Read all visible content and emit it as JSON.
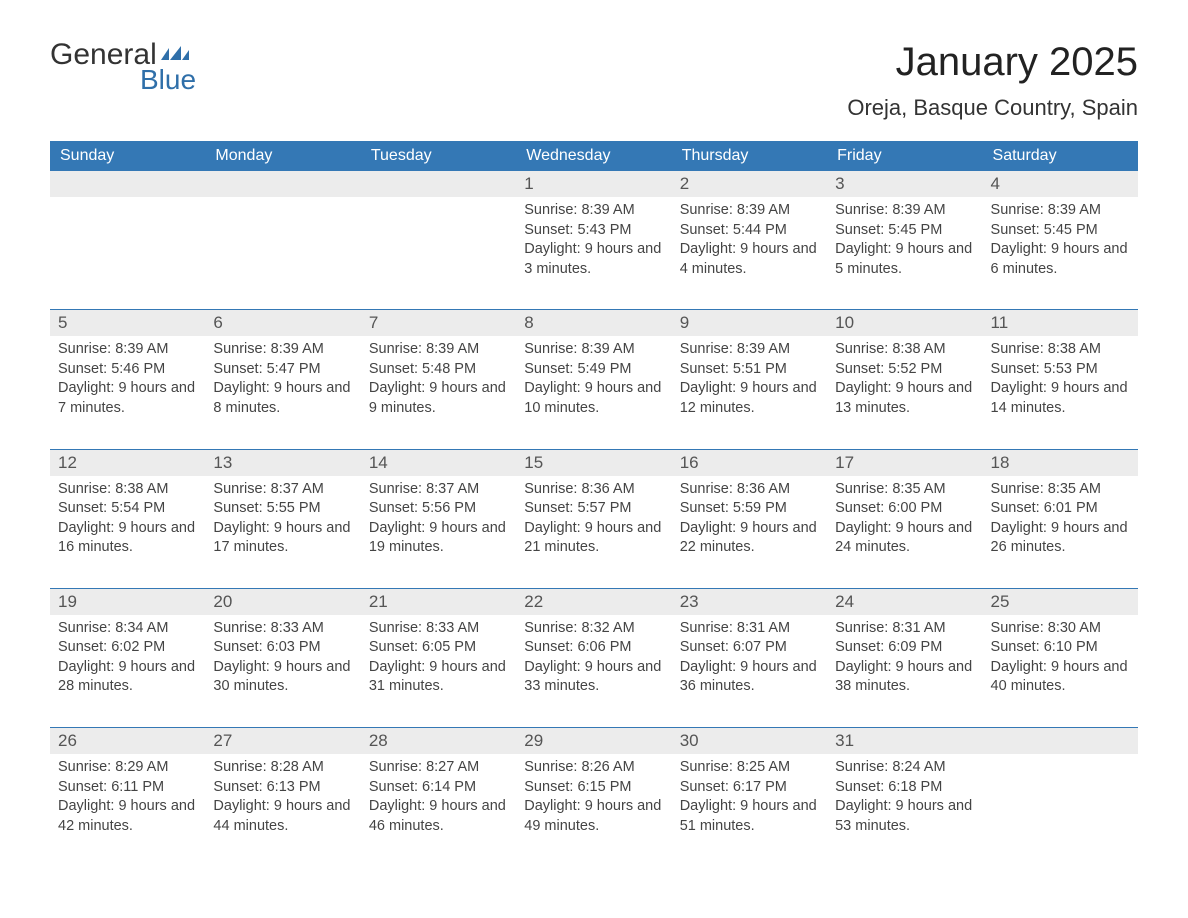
{
  "logo": {
    "word1": "General",
    "word2": "Blue",
    "flag_color": "#2f6fa9"
  },
  "title": "January 2025",
  "location": "Oreja, Basque Country, Spain",
  "colors": {
    "header_bg": "#3478b5",
    "header_text": "#ffffff",
    "daynum_bg": "#ececec",
    "accent": "#3478b5",
    "text": "#444444"
  },
  "day_headers": [
    "Sunday",
    "Monday",
    "Tuesday",
    "Wednesday",
    "Thursday",
    "Friday",
    "Saturday"
  ],
  "weeks": [
    {
      "days": [
        {
          "n": "",
          "sunrise": "",
          "sunset": "",
          "daylight": ""
        },
        {
          "n": "",
          "sunrise": "",
          "sunset": "",
          "daylight": ""
        },
        {
          "n": "",
          "sunrise": "",
          "sunset": "",
          "daylight": ""
        },
        {
          "n": "1",
          "sunrise": "Sunrise: 8:39 AM",
          "sunset": "Sunset: 5:43 PM",
          "daylight": "Daylight: 9 hours and 3 minutes."
        },
        {
          "n": "2",
          "sunrise": "Sunrise: 8:39 AM",
          "sunset": "Sunset: 5:44 PM",
          "daylight": "Daylight: 9 hours and 4 minutes."
        },
        {
          "n": "3",
          "sunrise": "Sunrise: 8:39 AM",
          "sunset": "Sunset: 5:45 PM",
          "daylight": "Daylight: 9 hours and 5 minutes."
        },
        {
          "n": "4",
          "sunrise": "Sunrise: 8:39 AM",
          "sunset": "Sunset: 5:45 PM",
          "daylight": "Daylight: 9 hours and 6 minutes."
        }
      ]
    },
    {
      "days": [
        {
          "n": "5",
          "sunrise": "Sunrise: 8:39 AM",
          "sunset": "Sunset: 5:46 PM",
          "daylight": "Daylight: 9 hours and 7 minutes."
        },
        {
          "n": "6",
          "sunrise": "Sunrise: 8:39 AM",
          "sunset": "Sunset: 5:47 PM",
          "daylight": "Daylight: 9 hours and 8 minutes."
        },
        {
          "n": "7",
          "sunrise": "Sunrise: 8:39 AM",
          "sunset": "Sunset: 5:48 PM",
          "daylight": "Daylight: 9 hours and 9 minutes."
        },
        {
          "n": "8",
          "sunrise": "Sunrise: 8:39 AM",
          "sunset": "Sunset: 5:49 PM",
          "daylight": "Daylight: 9 hours and 10 minutes."
        },
        {
          "n": "9",
          "sunrise": "Sunrise: 8:39 AM",
          "sunset": "Sunset: 5:51 PM",
          "daylight": "Daylight: 9 hours and 12 minutes."
        },
        {
          "n": "10",
          "sunrise": "Sunrise: 8:38 AM",
          "sunset": "Sunset: 5:52 PM",
          "daylight": "Daylight: 9 hours and 13 minutes."
        },
        {
          "n": "11",
          "sunrise": "Sunrise: 8:38 AM",
          "sunset": "Sunset: 5:53 PM",
          "daylight": "Daylight: 9 hours and 14 minutes."
        }
      ]
    },
    {
      "days": [
        {
          "n": "12",
          "sunrise": "Sunrise: 8:38 AM",
          "sunset": "Sunset: 5:54 PM",
          "daylight": "Daylight: 9 hours and 16 minutes."
        },
        {
          "n": "13",
          "sunrise": "Sunrise: 8:37 AM",
          "sunset": "Sunset: 5:55 PM",
          "daylight": "Daylight: 9 hours and 17 minutes."
        },
        {
          "n": "14",
          "sunrise": "Sunrise: 8:37 AM",
          "sunset": "Sunset: 5:56 PM",
          "daylight": "Daylight: 9 hours and 19 minutes."
        },
        {
          "n": "15",
          "sunrise": "Sunrise: 8:36 AM",
          "sunset": "Sunset: 5:57 PM",
          "daylight": "Daylight: 9 hours and 21 minutes."
        },
        {
          "n": "16",
          "sunrise": "Sunrise: 8:36 AM",
          "sunset": "Sunset: 5:59 PM",
          "daylight": "Daylight: 9 hours and 22 minutes."
        },
        {
          "n": "17",
          "sunrise": "Sunrise: 8:35 AM",
          "sunset": "Sunset: 6:00 PM",
          "daylight": "Daylight: 9 hours and 24 minutes."
        },
        {
          "n": "18",
          "sunrise": "Sunrise: 8:35 AM",
          "sunset": "Sunset: 6:01 PM",
          "daylight": "Daylight: 9 hours and 26 minutes."
        }
      ]
    },
    {
      "days": [
        {
          "n": "19",
          "sunrise": "Sunrise: 8:34 AM",
          "sunset": "Sunset: 6:02 PM",
          "daylight": "Daylight: 9 hours and 28 minutes."
        },
        {
          "n": "20",
          "sunrise": "Sunrise: 8:33 AM",
          "sunset": "Sunset: 6:03 PM",
          "daylight": "Daylight: 9 hours and 30 minutes."
        },
        {
          "n": "21",
          "sunrise": "Sunrise: 8:33 AM",
          "sunset": "Sunset: 6:05 PM",
          "daylight": "Daylight: 9 hours and 31 minutes."
        },
        {
          "n": "22",
          "sunrise": "Sunrise: 8:32 AM",
          "sunset": "Sunset: 6:06 PM",
          "daylight": "Daylight: 9 hours and 33 minutes."
        },
        {
          "n": "23",
          "sunrise": "Sunrise: 8:31 AM",
          "sunset": "Sunset: 6:07 PM",
          "daylight": "Daylight: 9 hours and 36 minutes."
        },
        {
          "n": "24",
          "sunrise": "Sunrise: 8:31 AM",
          "sunset": "Sunset: 6:09 PM",
          "daylight": "Daylight: 9 hours and 38 minutes."
        },
        {
          "n": "25",
          "sunrise": "Sunrise: 8:30 AM",
          "sunset": "Sunset: 6:10 PM",
          "daylight": "Daylight: 9 hours and 40 minutes."
        }
      ]
    },
    {
      "days": [
        {
          "n": "26",
          "sunrise": "Sunrise: 8:29 AM",
          "sunset": "Sunset: 6:11 PM",
          "daylight": "Daylight: 9 hours and 42 minutes."
        },
        {
          "n": "27",
          "sunrise": "Sunrise: 8:28 AM",
          "sunset": "Sunset: 6:13 PM",
          "daylight": "Daylight: 9 hours and 44 minutes."
        },
        {
          "n": "28",
          "sunrise": "Sunrise: 8:27 AM",
          "sunset": "Sunset: 6:14 PM",
          "daylight": "Daylight: 9 hours and 46 minutes."
        },
        {
          "n": "29",
          "sunrise": "Sunrise: 8:26 AM",
          "sunset": "Sunset: 6:15 PM",
          "daylight": "Daylight: 9 hours and 49 minutes."
        },
        {
          "n": "30",
          "sunrise": "Sunrise: 8:25 AM",
          "sunset": "Sunset: 6:17 PM",
          "daylight": "Daylight: 9 hours and 51 minutes."
        },
        {
          "n": "31",
          "sunrise": "Sunrise: 8:24 AM",
          "sunset": "Sunset: 6:18 PM",
          "daylight": "Daylight: 9 hours and 53 minutes."
        },
        {
          "n": "",
          "sunrise": "",
          "sunset": "",
          "daylight": ""
        }
      ]
    }
  ]
}
